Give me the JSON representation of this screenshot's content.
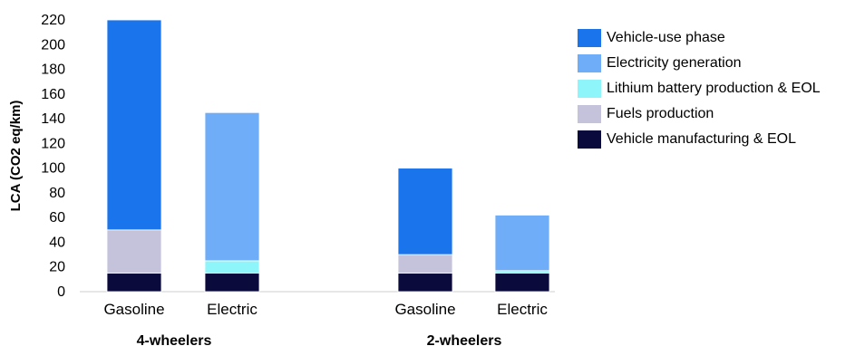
{
  "chart_data": {
    "type": "bar",
    "stacked": true,
    "title": "",
    "xlabel": "",
    "ylabel": "LCA (CO2 eq/km)",
    "ylim": [
      0,
      220
    ],
    "yticks": [
      0,
      20,
      40,
      60,
      80,
      100,
      120,
      140,
      160,
      180,
      200,
      220
    ],
    "groups": [
      {
        "name": "4-wheelers",
        "categories": [
          "Gasoline",
          "Electric"
        ]
      },
      {
        "name": "2-wheelers",
        "categories": [
          "Gasoline",
          "Electric"
        ]
      }
    ],
    "categories": [
      "Gasoline",
      "Electric",
      "Gasoline",
      "Electric"
    ],
    "series": [
      {
        "name": "Vehicle manufacturing & EOL",
        "color": "#0a0a3c",
        "values": [
          15,
          15,
          15,
          15
        ]
      },
      {
        "name": "Fuels production",
        "color": "#c5c3db",
        "values": [
          35,
          0,
          15,
          0
        ]
      },
      {
        "name": "Lithium battery production & EOL",
        "color": "#8ef6fa",
        "values": [
          0,
          10,
          0,
          2
        ]
      },
      {
        "name": "Electricity generation",
        "color": "#6fadf9",
        "values": [
          0,
          120,
          0,
          45
        ]
      },
      {
        "name": "Vehicle-use phase",
        "color": "#1a74ec",
        "values": [
          170,
          0,
          70,
          0
        ]
      }
    ],
    "legend": {
      "position": "right",
      "order": [
        "Vehicle-use phase",
        "Electricity generation",
        "Lithium battery production & EOL",
        "Fuels production",
        "Vehicle manufacturing & EOL"
      ]
    },
    "grid": false
  }
}
